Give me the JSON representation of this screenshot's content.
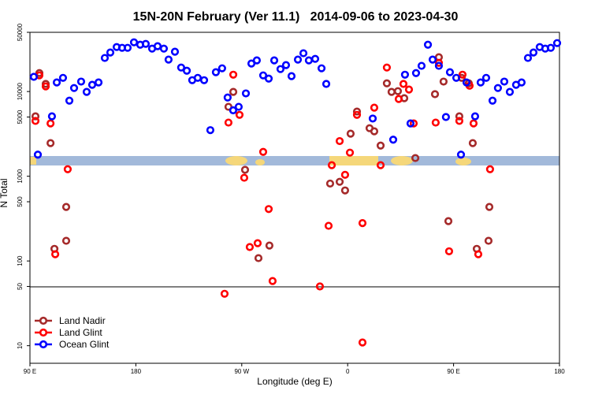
{
  "chart_data": {
    "type": "scatter",
    "title": "15N-20N February (Ver 11.1)   2014-09-06 to 2023-04-30",
    "x_label": "Longitude (deg E)",
    "y_label": "N Total",
    "xlim": [
      90,
      540
    ],
    "xticks": [
      {
        "value": 90,
        "label": "90 E"
      },
      180,
      {
        "value": 270,
        "label": "90 W"
      },
      {
        "value": 360,
        "label": "0"
      },
      {
        "value": 450,
        "label": "90 E"
      },
      {
        "value": 540,
        "label": "180"
      }
    ],
    "ylim": [
      6.2,
      50000
    ],
    "yscale": "log",
    "yticks": [
      10,
      50,
      100,
      500,
      1000,
      5000,
      10000,
      50000
    ],
    "legend": "bottom-left",
    "series": [
      {
        "name": "Land Nadir",
        "color": "#a52a2a",
        "x": [
          94.7,
          98,
          103.4,
          107.5,
          110.8,
          120.8,
          120.8,
          258.7,
          262.8,
          272.8,
          293.5,
          284.2,
          345.1,
          353.2,
          357.8,
          362.5,
          367.9,
          378.6,
          382.6,
          388,
          393.3,
          397.3,
          402.7,
          408.1,
          417.5,
          434.2,
          437.5,
          441.5,
          445.6,
          454.9,
          456.9,
          462.9,
          466.3,
          469.7,
          480.4,
          479.7
        ],
        "values": [
          5100,
          16500,
          12300,
          2460,
          139,
          434,
          173,
          6600,
          9900,
          1190,
          152,
          108,
          820,
          860,
          680,
          3180,
          5800,
          3690,
          3390,
          2300,
          12500,
          9900,
          10100,
          8340,
          1640,
          9300,
          25400,
          13100,
          295,
          5100,
          14500,
          12500,
          2460,
          139,
          434,
          173
        ]
      },
      {
        "name": "Land Glint",
        "color": "#ff0000",
        "x": [
          94.7,
          98,
          103.4,
          107.5,
          111.5,
          122.1,
          258.7,
          262.8,
          268.1,
          272.1,
          276.8,
          283.5,
          288.2,
          292.9,
          296.2,
          255.4,
          336.4,
          343.8,
          346.5,
          353.2,
          357.8,
          361.9,
          367.9,
          372.6,
          372.6,
          382.6,
          388,
          393.3,
          403.4,
          407.4,
          412.1,
          416.1,
          437.5,
          434.8,
          446.2,
          454.9,
          457.6,
          463.6,
          467,
          471,
          481
        ],
        "values": [
          4500,
          15500,
          11500,
          4200,
          120,
          1210,
          4300,
          15800,
          5300,
          960,
          146,
          162,
          1940,
          410,
          58,
          41,
          50,
          260,
          1350,
          2600,
          1040,
          1900,
          5300,
          280,
          10.9,
          6450,
          1350,
          19200,
          8160,
          12300,
          10550,
          4200,
          21800,
          4300,
          130,
          4500,
          15800,
          11700,
          4200,
          120,
          1210
        ]
      },
      {
        "name": "Ocean Glint",
        "color": "#0000ff",
        "x": [
          93.3,
          96.7,
          108.7,
          112.8,
          118.1,
          123.5,
          127.5,
          133.5,
          138.2,
          142.9,
          148.3,
          153.6,
          158.3,
          163.7,
          168.3,
          173,
          178.4,
          183.7,
          188.4,
          193.8,
          198.5,
          203.8,
          207.8,
          213.2,
          218.5,
          223.3,
          227.9,
          232.6,
          238,
          243.3,
          248,
          253.3,
          258,
          262.7,
          267.4,
          273.5,
          278.2,
          282.8,
          288.2,
          292.9,
          297.6,
          302.9,
          307.6,
          312.3,
          317.7,
          322.4,
          327,
          332.4,
          337.8,
          341.8,
          381.3,
          398.7,
          408.7,
          413.4,
          418.1,
          422.8,
          428.2,
          432.2,
          437.5,
          443.5,
          446.9,
          452.3,
          456.3,
          461,
          468.3,
          473,
          477.7,
          483.1,
          487.7,
          493.1,
          497.8,
          503.1,
          507.8,
          513.2,
          517.9,
          523.2,
          527.9,
          532.6,
          538
        ],
        "values": [
          14900,
          1800,
          5100,
          12800,
          14500,
          7800,
          11000,
          13100,
          9900,
          12000,
          12800,
          24900,
          28900,
          33500,
          32800,
          32800,
          38100,
          35700,
          36500,
          32100,
          34300,
          32100,
          23800,
          29500,
          19200,
          17600,
          13600,
          14500,
          13600,
          3500,
          16900,
          18800,
          8500,
          6000,
          6600,
          9500,
          21400,
          23300,
          15500,
          14200,
          23300,
          18400,
          20500,
          15200,
          23800,
          28300,
          23300,
          24300,
          18800,
          12300,
          4800,
          2700,
          15800,
          4200,
          16500,
          20100,
          35700,
          23800,
          20100,
          5000,
          16900,
          14500,
          1800,
          12800,
          5100,
          12800,
          14500,
          7800,
          11000,
          13100,
          9900,
          12000,
          12800,
          24900,
          28900,
          33500,
          32100,
          32800,
          37300
        ]
      }
    ]
  }
}
